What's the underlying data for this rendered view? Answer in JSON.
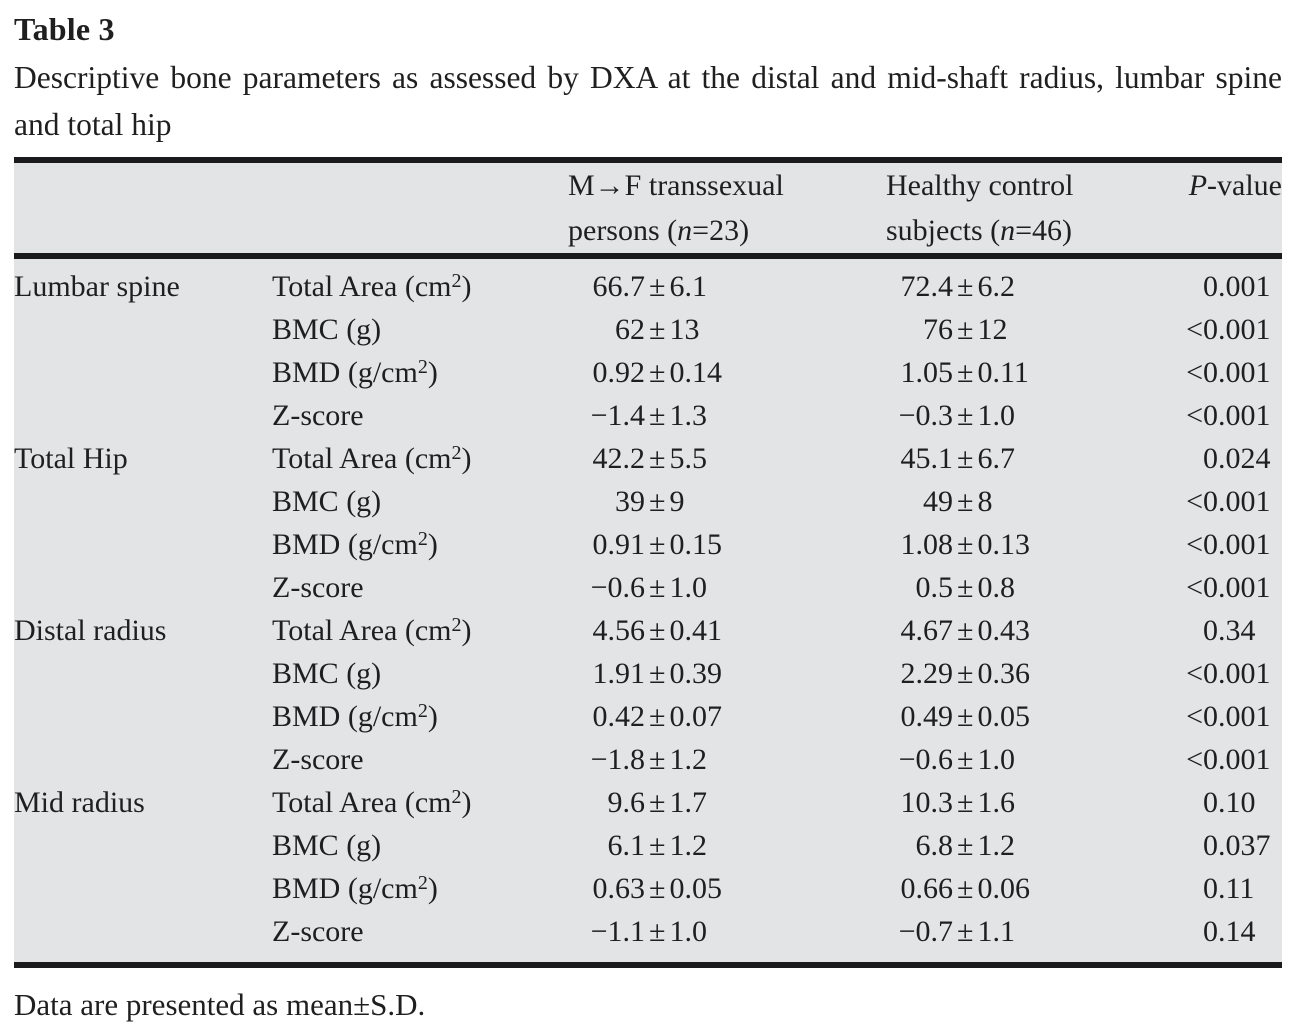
{
  "caption": {
    "label": "Table 3",
    "description": "Descriptive bone parameters as assessed by DXA at the distal and mid-shaft radius, lumbar spine and total hip"
  },
  "table": {
    "column_headers": [
      "",
      "",
      "M→F transsexual\npersons (*n*=23)",
      "Healthy control\nsubjects (*n*=46)",
      "*P*-value"
    ],
    "rows": [
      [
        "Lumbar spine",
        "Total Area (cm^2)",
        "66.7±6.1",
        "72.4±6.2",
        "0.001"
      ],
      [
        "",
        "BMC (g)",
        "62±13",
        "76±12",
        "<0.001"
      ],
      [
        "",
        "BMD (g/cm^2)",
        "0.92±0.14",
        "1.05±0.11",
        "<0.001"
      ],
      [
        "",
        "Z-score",
        "−1.4±1.3",
        "−0.3±1.0",
        "<0.001"
      ],
      [
        "Total Hip",
        "Total Area (cm^2)",
        "42.2±5.5",
        "45.1±6.7",
        "0.024"
      ],
      [
        "",
        "BMC (g)",
        "39±9",
        "49±8",
        "<0.001"
      ],
      [
        "",
        "BMD (g/cm^2)",
        "0.91±0.15",
        "1.08±0.13",
        "<0.001"
      ],
      [
        "",
        "Z-score",
        "−0.6±1.0",
        "0.5±0.8",
        "<0.001"
      ],
      [
        "Distal radius",
        "Total Area (cm^2)",
        "4.56±0.41",
        "4.67±0.43",
        "0.34"
      ],
      [
        "",
        "BMC (g)",
        "1.91±0.39",
        "2.29±0.36",
        "<0.001"
      ],
      [
        "",
        "BMD (g/cm^2)",
        "0.42±0.07",
        "0.49±0.05",
        "<0.001"
      ],
      [
        "",
        "Z-score",
        "−1.8±1.2",
        "−0.6±1.0",
        "<0.001"
      ],
      [
        "Mid radius",
        "Total Area (cm^2)",
        "9.6±1.7",
        "10.3±1.6",
        "0.10"
      ],
      [
        "",
        "BMC (g)",
        "6.1±1.2",
        "6.8±1.2",
        "0.037"
      ],
      [
        "",
        "BMD (g/cm^2)",
        "0.63±0.05",
        "0.66±0.06",
        "0.11"
      ],
      [
        "",
        "Z-score",
        "−1.1±1.0",
        "−0.7±1.1",
        "0.14"
      ]
    ]
  },
  "footnote": "Data are presented as mean±S.D.",
  "colors": {
    "table_background": "#e3e4e6",
    "rule": "#1b1b1d",
    "text": "#1f1f20",
    "page_background": "#ffffff"
  }
}
